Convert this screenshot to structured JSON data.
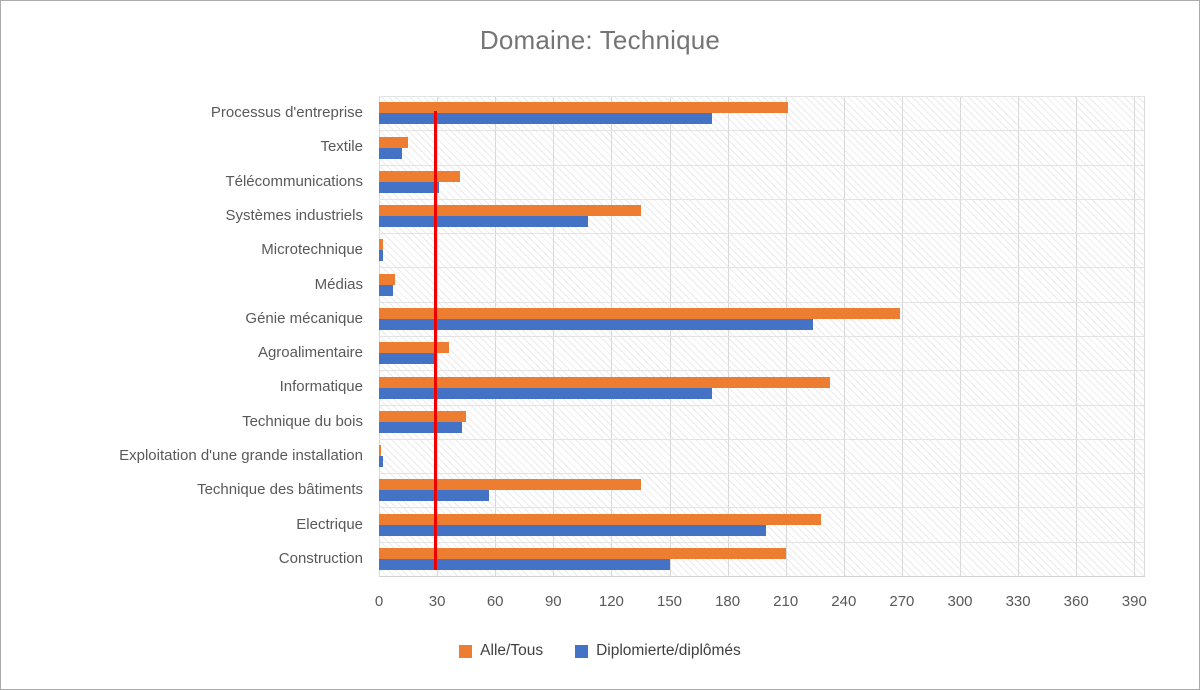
{
  "chart_data": {
    "type": "bar",
    "orientation": "horizontal",
    "title": "Domaine: Technique",
    "categories": [
      "Processus d'entreprise",
      "Textile",
      "Télécommunications",
      "Systèmes industriels",
      "Microtechnique",
      "Médias",
      "Génie mécanique",
      "Agroalimentaire",
      "Informatique",
      "Technique du bois",
      "Exploitation d'une grande installation",
      "Technique des bâtiments",
      "Electrique",
      "Construction"
    ],
    "series": [
      {
        "name": "Alle/Tous",
        "color": "#ED7D31",
        "values": [
          211,
          15,
          42,
          135,
          2,
          8,
          269,
          36,
          233,
          45,
          1,
          135,
          228,
          210
        ]
      },
      {
        "name": "Diplomierte/diplômés",
        "color": "#4472C4",
        "values": [
          172,
          12,
          31,
          108,
          2,
          7,
          224,
          29,
          172,
          43,
          2,
          57,
          200,
          150
        ]
      }
    ],
    "x_axis": {
      "min": 0,
      "max": 390,
      "step": 30,
      "plot_max": 395.5,
      "tick_labels": [
        "0",
        "30",
        "60",
        "90",
        "120",
        "150",
        "180",
        "210",
        "240",
        "270",
        "300",
        "330",
        "360",
        "390"
      ]
    },
    "reference_line": {
      "x": 29,
      "color": "#f10000"
    },
    "legend_position": "bottom",
    "grid": true
  },
  "colors": {
    "title": "#757575",
    "axis_text": "#595959",
    "gridline": "#d9d9d9",
    "plot_hatch": "#ebebeb",
    "border": "#ababab"
  }
}
